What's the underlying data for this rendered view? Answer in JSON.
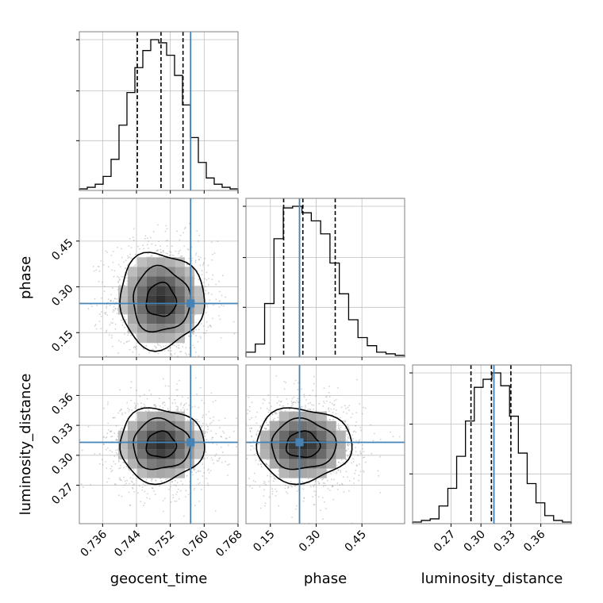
{
  "chart_data": {
    "type": "corner",
    "parameters": [
      "geocent_time",
      "phase",
      "luminosity_distance"
    ],
    "axis_labels": {
      "geocent_time": "geocent_time",
      "phase": "phase",
      "luminosity_distance": "luminosity_distance"
    },
    "ranges": {
      "geocent_time": [
        0.7305,
        0.768
      ],
      "phase": [
        0.07,
        0.59
      ],
      "luminosity_distance": [
        0.2315,
        0.3905
      ]
    },
    "ticks": {
      "geocent_time": {
        "values": [
          0.736,
          0.744,
          0.752,
          0.76,
          0.768
        ],
        "labels": [
          "0.736",
          "0.744",
          "0.752",
          "0.760",
          "0.768"
        ]
      },
      "phase": {
        "values": [
          0.15,
          0.3,
          0.45
        ],
        "labels": [
          "0.15",
          "0.30",
          "0.45"
        ]
      },
      "luminosity_distance": {
        "values": [
          0.27,
          0.3,
          0.33,
          0.36
        ],
        "labels": [
          "0.27",
          "0.30",
          "0.33",
          "0.36"
        ]
      }
    },
    "truths": {
      "geocent_time": 0.7568,
      "phase": 0.2455,
      "luminosity_distance": 0.313
    },
    "quantiles": {
      "geocent_time": [
        0.7442,
        0.7498,
        0.755
      ],
      "phase": [
        0.1935,
        0.2565,
        0.3625
      ],
      "luminosity_distance": [
        0.29,
        0.3105,
        0.33
      ]
    },
    "histograms": {
      "geocent_time": [
        1,
        2,
        4,
        9,
        20,
        42,
        63,
        79,
        90,
        97,
        95,
        87,
        74,
        55,
        34,
        18,
        8,
        4,
        2,
        1
      ],
      "phase": [
        3,
        8,
        33,
        73,
        92,
        93,
        89,
        84,
        76,
        58,
        39,
        23,
        12,
        7,
        3,
        2,
        1
      ],
      "luminosity_distance": [
        1,
        2,
        3,
        11,
        22,
        42,
        64,
        85,
        90,
        94,
        86,
        67,
        44,
        25,
        13,
        5,
        2,
        1
      ]
    },
    "correlations": {
      "phase_vs_geocent_time": 0.0,
      "luminosity_distance_vs_geocent_time": 0.0,
      "luminosity_distance_vs_phase": 0.0
    },
    "colors": {
      "truth": "#4682b4",
      "hist": "#000000",
      "grid": "#c0c0c0",
      "points": "#7f7f7f"
    },
    "grid": true
  }
}
